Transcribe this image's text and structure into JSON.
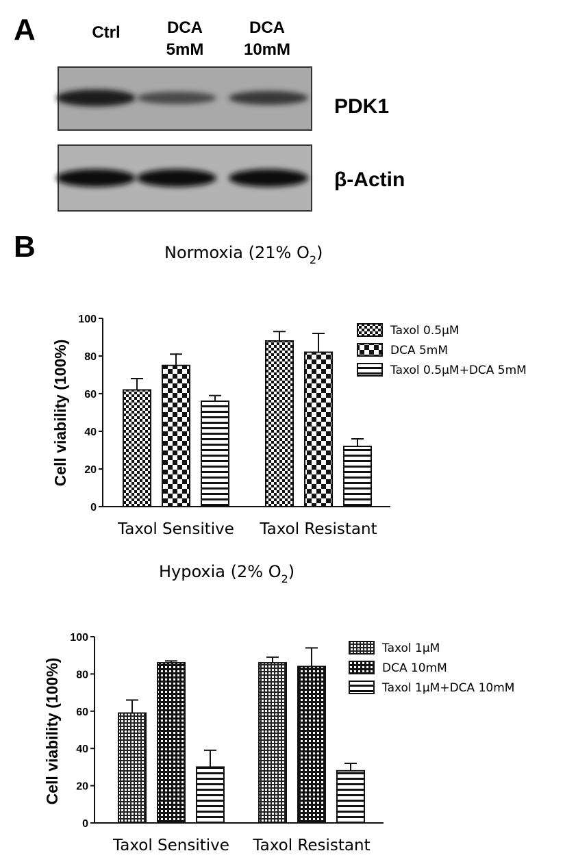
{
  "panel_a": {
    "letter": "A",
    "lanes": [
      {
        "line1": "Ctrl",
        "line2": ""
      },
      {
        "line1": "DCA",
        "line2": "5mM"
      },
      {
        "line1": "DCA",
        "line2": "10mM"
      }
    ],
    "blots": [
      {
        "label": "PDK1",
        "intensities": [
          0.9,
          0.45,
          0.6
        ]
      },
      {
        "label": "β-Actin",
        "intensities": [
          1.0,
          1.0,
          1.0
        ]
      }
    ]
  },
  "panel_b": {
    "letter": "B"
  },
  "chart_data": [
    {
      "type": "bar",
      "title": "Normoxia (21% O",
      "title_sub": "2",
      "title_end": ")",
      "ylabel": "Cell viability (100%)",
      "ylim": [
        0,
        100
      ],
      "yticks": [
        0,
        20,
        40,
        60,
        80,
        100
      ],
      "categories": [
        "Taxol Sensitive",
        "Taxol Resistant"
      ],
      "legend_position": "top-right",
      "series": [
        {
          "name": "Taxol 0.5μM",
          "pattern": "check-small",
          "values": [
            62,
            88
          ],
          "errors": [
            6,
            5
          ]
        },
        {
          "name": "DCA 5mM",
          "pattern": "check-large",
          "values": [
            75,
            82
          ],
          "errors": [
            6,
            10
          ]
        },
        {
          "name": "Taxol 0.5μM+DCA 5mM",
          "pattern": "horizontal",
          "values": [
            56,
            32
          ],
          "errors": [
            3,
            4
          ]
        }
      ]
    },
    {
      "type": "bar",
      "title": "Hypoxia (2% O",
      "title_sub": "2",
      "title_end": ")",
      "ylabel": "Cell viability (100%)",
      "ylim": [
        0,
        100
      ],
      "yticks": [
        0,
        20,
        40,
        60,
        80,
        100
      ],
      "categories": [
        "Taxol Sensitive",
        "Taxol Resistant"
      ],
      "legend_position": "top-right",
      "series": [
        {
          "name": "Taxol 1μM",
          "pattern": "grid-fine",
          "values": [
            59,
            86
          ],
          "errors": [
            7,
            3
          ]
        },
        {
          "name": "DCA 10mM",
          "pattern": "dots-fine",
          "values": [
            86,
            84
          ],
          "errors": [
            1,
            10
          ]
        },
        {
          "name": "Taxol 1μM+DCA 10mM",
          "pattern": "horizontal",
          "values": [
            30,
            28
          ],
          "errors": [
            9,
            4
          ]
        }
      ]
    }
  ]
}
